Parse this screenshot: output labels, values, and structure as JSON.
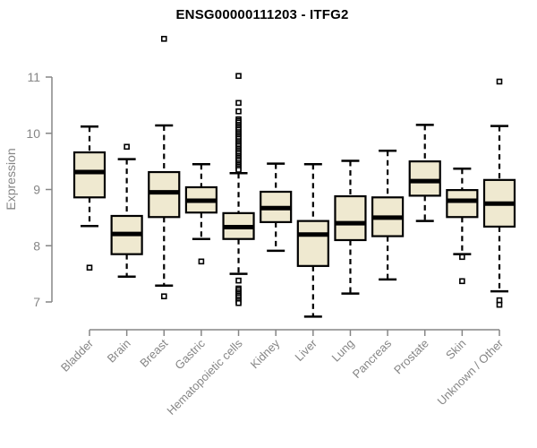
{
  "chart_data": {
    "type": "boxplot",
    "title": "ENSG00000111203 - ITFG2",
    "ylabel": "Expression",
    "xlabel": "",
    "yticks": [
      7,
      8,
      9,
      10,
      11
    ],
    "ylim": [
      6.7,
      11.8
    ],
    "grid": false,
    "legend": "none",
    "axis_color": "#868686",
    "box_fill": "#efe9d0",
    "box_stroke": "#000000",
    "categories": [
      "Bladder",
      "Brain",
      "Breast",
      "Gastric",
      "Hematopoietic cells",
      "Kidney",
      "Liver",
      "Lung",
      "Pancreas",
      "Prostate",
      "Skin",
      "Unknown / Other"
    ],
    "series": [
      {
        "name": "Bladder",
        "whisker_low": 8.35,
        "q1": 8.86,
        "median": 9.31,
        "q3": 9.66,
        "whisker_high": 10.12,
        "outliers": [
          7.61
        ]
      },
      {
        "name": "Brain",
        "whisker_low": 7.45,
        "q1": 7.85,
        "median": 8.21,
        "q3": 8.53,
        "whisker_high": 9.54,
        "outliers": [
          9.76
        ]
      },
      {
        "name": "Breast",
        "whisker_low": 7.29,
        "q1": 8.51,
        "median": 8.95,
        "q3": 9.31,
        "whisker_high": 10.14,
        "outliers": [
          11.68,
          7.1
        ]
      },
      {
        "name": "Gastric",
        "whisker_low": 8.12,
        "q1": 8.59,
        "median": 8.8,
        "q3": 9.04,
        "whisker_high": 9.45,
        "outliers": [
          7.72
        ]
      },
      {
        "name": "Hematopoietic cells",
        "whisker_low": 7.5,
        "q1": 8.12,
        "median": 8.33,
        "q3": 8.58,
        "whisker_high": 9.29,
        "outliers": [
          11.02,
          10.54,
          10.39,
          10.25,
          10.22,
          10.19,
          10.15,
          10.12,
          10.09,
          10.06,
          10.02,
          9.99,
          9.96,
          9.93,
          9.9,
          9.86,
          9.83,
          9.8,
          9.77,
          9.73,
          9.7,
          9.67,
          9.64,
          9.6,
          9.57,
          9.54,
          9.51,
          9.47,
          9.44,
          9.41,
          9.38,
          9.35,
          7.38,
          7.24,
          7.21,
          7.17,
          7.14,
          7.11,
          7.08,
          7.04,
          7.01,
          6.98
        ]
      },
      {
        "name": "Kidney",
        "whisker_low": 7.91,
        "q1": 8.42,
        "median": 8.67,
        "q3": 8.96,
        "whisker_high": 9.46,
        "outliers": []
      },
      {
        "name": "Liver",
        "whisker_low": 6.74,
        "q1": 7.64,
        "median": 8.2,
        "q3": 8.44,
        "whisker_high": 9.45,
        "outliers": []
      },
      {
        "name": "Lung",
        "whisker_low": 7.15,
        "q1": 8.1,
        "median": 8.4,
        "q3": 8.88,
        "whisker_high": 9.51,
        "outliers": []
      },
      {
        "name": "Pancreas",
        "whisker_low": 7.4,
        "q1": 8.17,
        "median": 8.5,
        "q3": 8.86,
        "whisker_high": 9.69,
        "outliers": []
      },
      {
        "name": "Prostate",
        "whisker_low": 8.44,
        "q1": 8.89,
        "median": 9.15,
        "q3": 9.5,
        "whisker_high": 10.15,
        "outliers": []
      },
      {
        "name": "Skin",
        "whisker_low": 7.85,
        "q1": 8.51,
        "median": 8.8,
        "q3": 8.99,
        "whisker_high": 9.37,
        "outliers": [
          7.8,
          7.37
        ]
      },
      {
        "name": "Unknown / Other",
        "whisker_low": 7.19,
        "q1": 8.34,
        "median": 8.75,
        "q3": 9.17,
        "whisker_high": 10.13,
        "outliers": [
          10.92,
          7.03,
          6.95
        ]
      }
    ]
  }
}
